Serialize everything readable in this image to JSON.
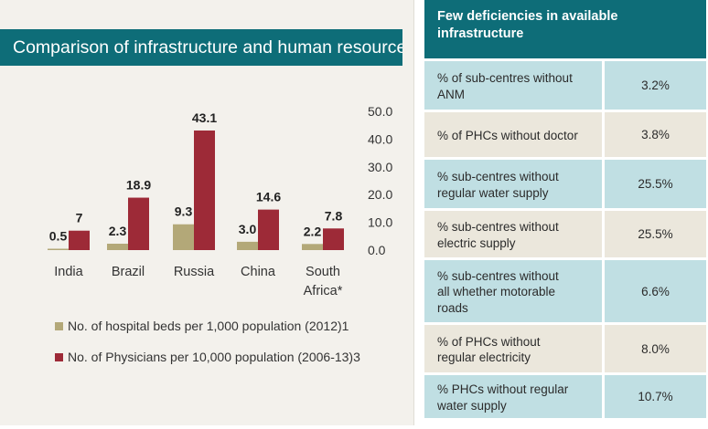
{
  "chart_title": "Comparison of infrastructure and human resource",
  "chart_data": {
    "type": "bar",
    "categories": [
      "India",
      "Brazil",
      "Russia",
      "China",
      "South Africa*"
    ],
    "series": [
      {
        "name": "No. of hospital beds per 1,000 population (2012)1",
        "values": [
          0.5,
          2.3,
          9.3,
          3.0,
          2.2
        ],
        "labels": [
          "0.5",
          "2.3",
          "9.3",
          "3.0",
          "2.2"
        ],
        "color": "#b3a878"
      },
      {
        "name": "No. of Physicians per 10,000 population (2006-13)3",
        "values": [
          7,
          18.9,
          43.1,
          14.6,
          7.8
        ],
        "labels": [
          "7",
          "18.9",
          "43.1",
          "14.6",
          "7.8"
        ],
        "color": "#9d2a37"
      }
    ],
    "category_lines": [
      [
        "India"
      ],
      [
        "Brazil"
      ],
      [
        "Russia"
      ],
      [
        "China"
      ],
      [
        "South",
        "Africa*"
      ]
    ],
    "yticks": [
      "0.0",
      "10.0",
      "20.0",
      "30.0",
      "40.0",
      "50.0"
    ],
    "ylim": [
      0,
      50
    ],
    "grid": false,
    "legend_position": "bottom"
  },
  "table": {
    "header": "Few deficiencies in available infrastructure",
    "header_lines": [
      "Few deficiencies in available",
      "infrastructure"
    ],
    "rows": [
      {
        "label_lines": [
          "% of sub-centres without",
          "ANM"
        ],
        "value": "3.2%"
      },
      {
        "label_lines": [
          "% of PHCs without doctor"
        ],
        "value": "3.8%"
      },
      {
        "label_lines": [
          "% sub-centres without",
          "regular water supply"
        ],
        "value": "25.5%"
      },
      {
        "label_lines": [
          "% sub-centres without",
          "electric supply"
        ],
        "value": "25.5%"
      },
      {
        "label_lines": [
          "% sub-centres without",
          "all whether motorable",
          "roads"
        ],
        "value": "6.6%"
      },
      {
        "label_lines": [
          "% of PHCs without",
          "regular electricity"
        ],
        "value": "8.0%"
      },
      {
        "label_lines": [
          "% PHCs without regular",
          "water supply"
        ],
        "value": "10.7%"
      }
    ]
  },
  "colors": {
    "teal": "#0e6d78",
    "teal_light": "#c0dfe3",
    "beige": "#ebe7dc",
    "panel_bg": "#f3f1ec"
  }
}
